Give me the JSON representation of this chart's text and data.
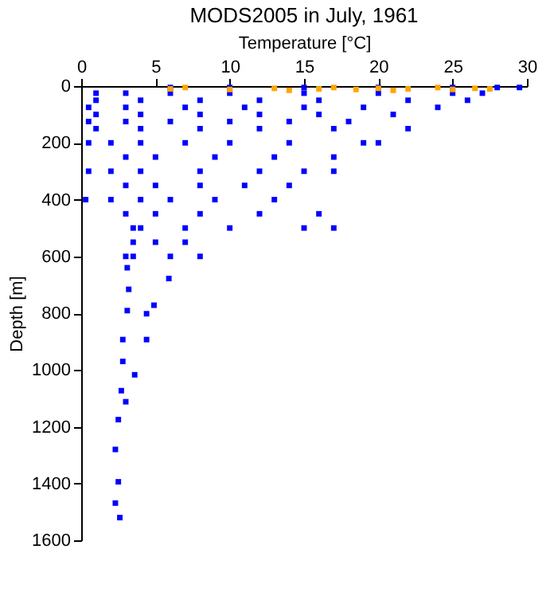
{
  "chart_data": {
    "type": "scatter",
    "title": "MODS2005 in July, 1961",
    "xlabel": "Temperature [°C]",
    "ylabel": "Depth [m]",
    "xlim": [
      0,
      30
    ],
    "xticks": [
      0,
      5,
      10,
      15,
      20,
      25,
      30
    ],
    "ylim": [
      1600,
      0
    ],
    "yticks": [
      0,
      200,
      400,
      600,
      800,
      1000,
      1200,
      1400,
      1600
    ],
    "grid": false,
    "marker": "square",
    "series": [
      {
        "color": "#0000ff",
        "x": [
          6,
          10,
          15,
          20,
          25,
          28,
          29.5,
          1,
          3,
          6,
          10,
          15,
          20,
          25,
          27,
          1,
          4,
          8,
          12,
          16,
          22,
          26,
          0.5,
          3,
          7,
          11,
          15,
          19,
          24,
          1,
          4,
          8,
          12,
          16,
          21,
          0.5,
          3,
          6,
          10,
          14,
          18,
          1,
          4,
          8,
          12,
          17,
          22,
          0.5,
          2,
          4,
          7,
          10,
          14,
          19,
          20,
          3,
          5,
          9,
          13,
          17,
          0.5,
          2,
          4,
          8,
          12,
          15,
          17,
          3,
          5,
          8,
          11,
          14,
          0.3,
          2,
          4,
          6,
          9,
          13,
          3,
          5,
          8,
          12,
          16,
          3.5,
          4,
          7,
          10,
          15,
          17,
          3.5,
          5,
          7,
          3,
          3.5,
          6,
          8,
          3.1,
          5.9,
          3.2,
          3.1,
          4.9,
          4.4,
          4.4,
          2.8,
          2.8,
          3.6,
          2.7,
          3,
          2.5,
          2.3,
          2.5,
          2.3,
          2.6
        ],
        "values": [
          5,
          5,
          5,
          5,
          5,
          5,
          5,
          25,
          25,
          25,
          25,
          25,
          25,
          25,
          25,
          50,
          50,
          50,
          50,
          50,
          50,
          50,
          75,
          75,
          75,
          75,
          75,
          75,
          75,
          100,
          100,
          100,
          100,
          100,
          100,
          125,
          125,
          125,
          125,
          125,
          125,
          150,
          150,
          150,
          150,
          150,
          150,
          200,
          200,
          200,
          200,
          200,
          200,
          200,
          200,
          250,
          250,
          250,
          250,
          250,
          300,
          300,
          300,
          300,
          300,
          300,
          300,
          350,
          350,
          350,
          350,
          350,
          400,
          400,
          400,
          400,
          400,
          400,
          450,
          450,
          450,
          450,
          450,
          500,
          500,
          500,
          500,
          500,
          500,
          550,
          550,
          550,
          600,
          600,
          600,
          600,
          640,
          678,
          716,
          791,
          772,
          802,
          893,
          893,
          970,
          1017,
          1073,
          1112,
          1175,
          1280,
          1394,
          1469,
          1520
        ]
      },
      {
        "color": "#ffa500",
        "x": [
          6,
          7,
          10,
          13,
          14,
          16,
          17,
          18.5,
          20,
          21,
          22,
          24,
          25,
          26.5,
          27.5
        ],
        "values": [
          10,
          5,
          12,
          8,
          15,
          10,
          5,
          12,
          8,
          15,
          10,
          5,
          12,
          8,
          10
        ]
      }
    ]
  }
}
